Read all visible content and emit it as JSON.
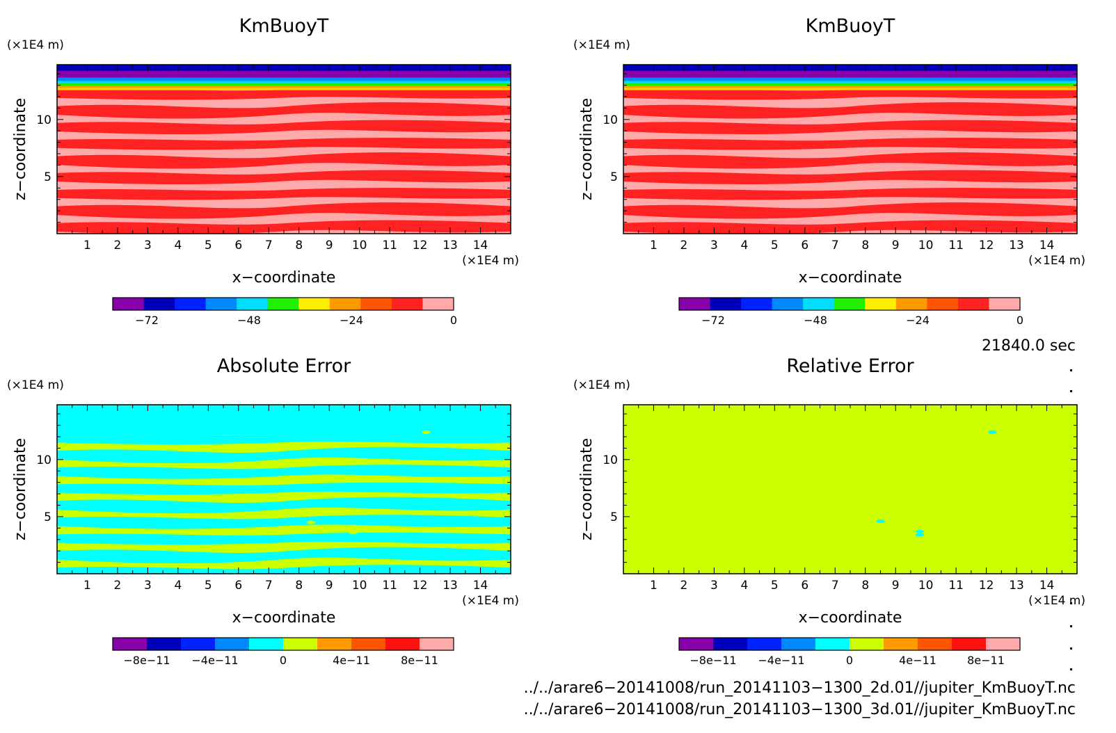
{
  "chart_data": [
    {
      "type": "heatmap",
      "title": "KmBuoyT",
      "xlabel": "x−coordinate",
      "ylabel": "z−coordinate",
      "x_unit": "(×1E4 m)",
      "y_unit": "(×1E4 m)",
      "xlim": [
        0,
        15
      ],
      "ylim": [
        0,
        14.8
      ],
      "x_ticks": [
        "1",
        "2",
        "3",
        "4",
        "5",
        "6",
        "7",
        "8",
        "9",
        "10",
        "11",
        "12",
        "13",
        "14"
      ],
      "y_ticks": [
        "5",
        "10"
      ],
      "colorbar": {
        "colors": [
          "#8800aa",
          "#0000bb",
          "#0022ff",
          "#0088ff",
          "#00ddff",
          "#22ee00",
          "#ffee00",
          "#ff9900",
          "#ff5500",
          "#ff2222",
          "#ffaaaa"
        ],
        "tick_labels": [
          "−72",
          "−48",
          "−24",
          "0"
        ],
        "tick_values": [
          -72,
          -48,
          -24,
          0
        ],
        "range": [
          -80,
          0
        ]
      },
      "layers": [
        {
          "from": 0,
          "to": 12.6,
          "pattern": "stripes",
          "colors": [
            "#ff2222",
            "#ffaaaa"
          ]
        },
        {
          "from": 12.6,
          "to": 12.8,
          "color": "#ffcc00"
        },
        {
          "from": 12.8,
          "to": 13.0,
          "color": "#ff9900"
        },
        {
          "from": 13.0,
          "to": 13.2,
          "color": "#22ee00"
        },
        {
          "from": 13.2,
          "to": 13.4,
          "color": "#00ddff"
        },
        {
          "from": 13.4,
          "to": 13.7,
          "color": "#0088ff"
        },
        {
          "from": 13.7,
          "to": 14.3,
          "color": "#8800aa"
        },
        {
          "from": 14.3,
          "to": 14.8,
          "color": "#0000bb"
        }
      ]
    },
    {
      "type": "heatmap",
      "title": "KmBuoyT",
      "xlabel": "x−coordinate",
      "ylabel": "z−coordinate",
      "x_unit": "(×1E4 m)",
      "y_unit": "(×1E4 m)",
      "xlim": [
        0,
        15
      ],
      "ylim": [
        0,
        14.8
      ],
      "x_ticks": [
        "1",
        "2",
        "3",
        "4",
        "5",
        "6",
        "7",
        "8",
        "9",
        "10",
        "11",
        "12",
        "13",
        "14"
      ],
      "y_ticks": [
        "5",
        "10"
      ],
      "colorbar": {
        "colors": [
          "#8800aa",
          "#0000bb",
          "#0022ff",
          "#0088ff",
          "#00ddff",
          "#22ee00",
          "#ffee00",
          "#ff9900",
          "#ff5500",
          "#ff2222",
          "#ffaaaa"
        ],
        "tick_labels": [
          "−72",
          "−48",
          "−24",
          "0"
        ],
        "tick_values": [
          -72,
          -48,
          -24,
          0
        ],
        "range": [
          -80,
          0
        ]
      },
      "layers": [
        {
          "from": 0,
          "to": 12.6,
          "pattern": "stripes",
          "colors": [
            "#ff2222",
            "#ffaaaa"
          ]
        },
        {
          "from": 12.6,
          "to": 12.8,
          "color": "#ffcc00"
        },
        {
          "from": 12.8,
          "to": 13.0,
          "color": "#ff9900"
        },
        {
          "from": 13.0,
          "to": 13.2,
          "color": "#22ee00"
        },
        {
          "from": 13.2,
          "to": 13.4,
          "color": "#00ddff"
        },
        {
          "from": 13.4,
          "to": 13.7,
          "color": "#0088ff"
        },
        {
          "from": 13.7,
          "to": 14.3,
          "color": "#8800aa"
        },
        {
          "from": 14.3,
          "to": 14.8,
          "color": "#0000bb"
        }
      ]
    },
    {
      "type": "heatmap",
      "title": "Absolute Error",
      "xlabel": "x−coordinate",
      "ylabel": "z−coordinate",
      "x_unit": "(×1E4 m)",
      "y_unit": "(×1E4 m)",
      "xlim": [
        0,
        15
      ],
      "ylim": [
        0,
        14.8
      ],
      "x_ticks": [
        "1",
        "2",
        "3",
        "4",
        "5",
        "6",
        "7",
        "8",
        "9",
        "10",
        "11",
        "12",
        "13",
        "14"
      ],
      "y_ticks": [
        "5",
        "10"
      ],
      "colorbar": {
        "colors": [
          "#8800aa",
          "#0000bb",
          "#0022ff",
          "#0088ff",
          "#00ffff",
          "#ccff00",
          "#ff9900",
          "#ff5500",
          "#ff1111",
          "#ffaaaa"
        ],
        "tick_labels": [
          "−8e−11",
          "−4e−11",
          "0",
          "4e−11",
          "8e−11"
        ],
        "tick_values": [
          -8e-11,
          -4e-11,
          0,
          4e-11,
          8e-11
        ],
        "range": [
          -1e-10,
          1e-10
        ]
      },
      "layers": [
        {
          "from": 0,
          "to": 12.2,
          "pattern": "stripes",
          "colors": [
            "#00ffff",
            "#ccff00"
          ]
        },
        {
          "from": 12.2,
          "to": 14.8,
          "color": "#00ffff"
        }
      ],
      "spots": [
        {
          "x": 12.2,
          "z": 12.4,
          "color": "#ccff00"
        },
        {
          "x": 8.4,
          "z": 4.5,
          "color": "#ccff00"
        },
        {
          "x": 9.8,
          "z": 3.6,
          "color": "#ccff00"
        }
      ]
    },
    {
      "type": "heatmap",
      "title": "Relative Error",
      "xlabel": "x−coordinate",
      "ylabel": "z−coordinate",
      "x_unit": "(×1E4 m)",
      "y_unit": "(×1E4 m)",
      "xlim": [
        0,
        15
      ],
      "ylim": [
        0,
        14.8
      ],
      "x_ticks": [
        "1",
        "2",
        "3",
        "4",
        "5",
        "6",
        "7",
        "8",
        "9",
        "10",
        "11",
        "12",
        "13",
        "14"
      ],
      "y_ticks": [
        "5",
        "10"
      ],
      "colorbar": {
        "colors": [
          "#8800aa",
          "#0000bb",
          "#0022ff",
          "#0088ff",
          "#00ffff",
          "#ccff00",
          "#ff9900",
          "#ff5500",
          "#ff1111",
          "#ffaaaa"
        ],
        "tick_labels": [
          "−8e−11",
          "−4e−11",
          "0",
          "4e−11",
          "8e−11"
        ],
        "tick_values": [
          -8e-11,
          -4e-11,
          0,
          4e-11,
          8e-11
        ],
        "range": [
          -1e-10,
          1e-10
        ]
      },
      "layers": [
        {
          "from": 0,
          "to": 14.8,
          "color": "#ccff00"
        }
      ],
      "spots": [
        {
          "x": 12.2,
          "z": 12.4,
          "color": "#00ffff"
        },
        {
          "x": 8.5,
          "z": 4.6,
          "color": "#00ffff"
        },
        {
          "x": 9.8,
          "z": 3.7,
          "color": "#00ffff"
        },
        {
          "x": 9.8,
          "z": 3.4,
          "color": "#00ffff"
        }
      ]
    }
  ],
  "info": {
    "time": "21840.0 sec",
    "file_1": "../../arare6−20141008/run_20141103−1300_2d.01//jupiter_KmBuoyT.nc",
    "file_2": "../../arare6−20141008/run_20141103−1300_3d.01//jupiter_KmBuoyT.nc"
  }
}
